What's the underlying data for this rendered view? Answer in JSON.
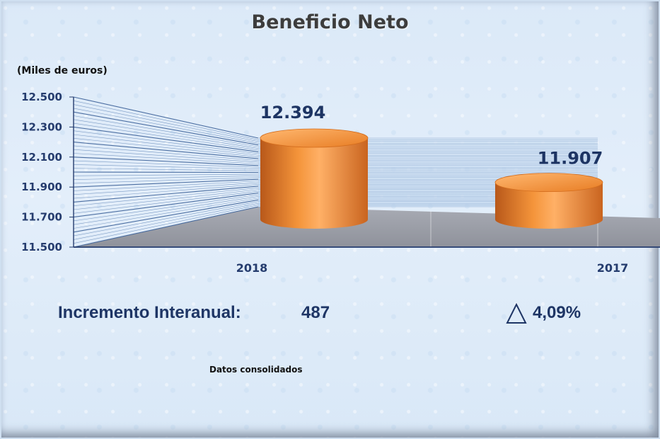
{
  "chart_data": {
    "type": "bar",
    "title": "Beneficio Neto",
    "ylabel": "(Miles de euros)",
    "xlabel": "",
    "categories": [
      "2018",
      "2017"
    ],
    "values": [
      12394,
      11907
    ],
    "value_labels": [
      "12.394",
      "11.907"
    ],
    "ylim": [
      11500,
      12500
    ],
    "yticks": [
      11500,
      11700,
      11900,
      12100,
      12300,
      12500
    ],
    "ytick_labels": [
      "11.500",
      "11.700",
      "11.900",
      "12.100",
      "12.300",
      "12.500"
    ],
    "style": "3d-cylinder",
    "bar_color": "#f08a2c",
    "grid": true,
    "legend": "none"
  },
  "summary": {
    "label": "Incremento Interanual:",
    "value": "487",
    "percent": "4,09%",
    "trend_icon": "triangle-up-outline-icon"
  },
  "footnote": "Datos consolidados",
  "colors": {
    "text_dark_blue": "#1e3565",
    "axis_blue": "#253c6e",
    "background": "#dbe9f8",
    "floor": "#9c9ea6"
  }
}
